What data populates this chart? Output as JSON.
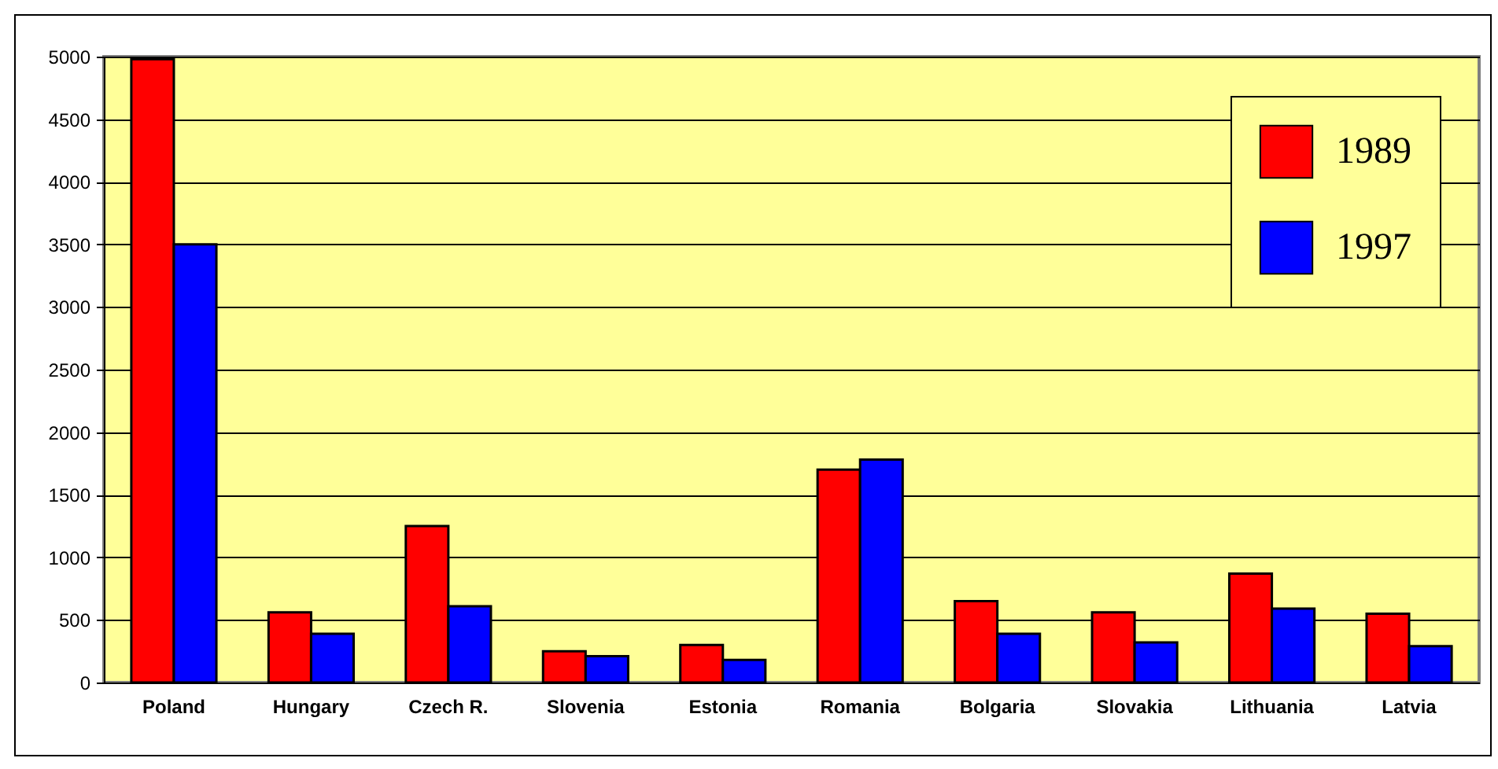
{
  "chart_data": {
    "type": "bar",
    "categories": [
      "Poland",
      "Hungary",
      "Czech R.",
      "Slovenia",
      "Estonia",
      "Romania",
      "Bolgaria",
      "Slovakia",
      "Lithuania",
      "Latvia"
    ],
    "series": [
      {
        "name": "1989",
        "color": "#ff0000",
        "values": [
          4980,
          560,
          1250,
          250,
          300,
          1700,
          650,
          560,
          870,
          550
        ]
      },
      {
        "name": "1997",
        "color": "#0000ff",
        "values": [
          3500,
          390,
          610,
          210,
          180,
          1780,
          390,
          320,
          590,
          290
        ]
      }
    ],
    "ylim": [
      0,
      5000
    ],
    "yticks": [
      0,
      500,
      1000,
      1500,
      2000,
      2500,
      3000,
      3500,
      4000,
      4500,
      5000
    ],
    "grid": true,
    "legend": "top right"
  }
}
